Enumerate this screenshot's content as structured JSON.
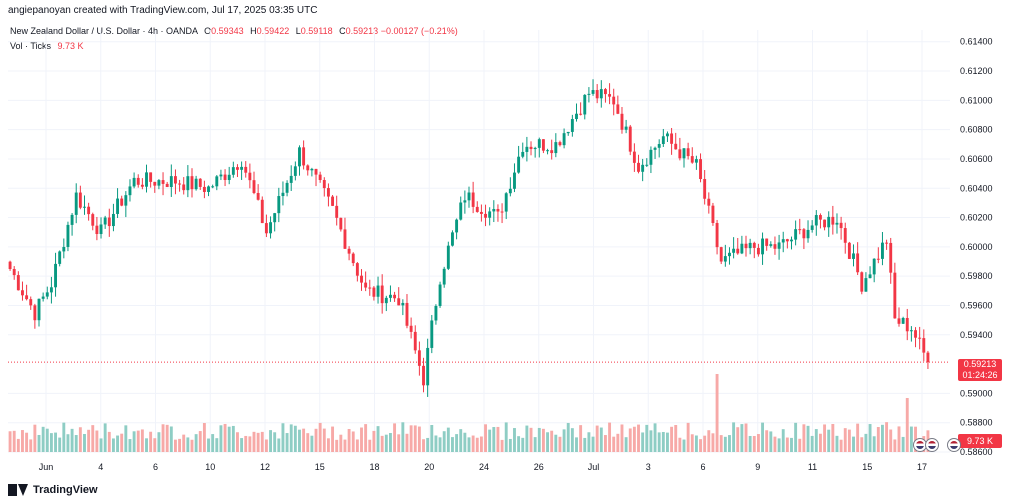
{
  "header": {
    "credit": "angiepanoyan created with TradingView.com, Jul 17, 2025 03:35 UTC"
  },
  "legend": {
    "symbol": "New Zealand Dollar / U.S. Dollar · 4h · OANDA",
    "open_label": "O",
    "open": "0.59343",
    "high_label": "H",
    "high": "0.59422",
    "low_label": "L",
    "low": "0.59118",
    "close_label": "C",
    "close": "0.59213",
    "change": "−0.00127 (−0.21%)",
    "volume_label": "Vol · Ticks",
    "volume_value": "9.73 K"
  },
  "price_tag": {
    "price": "0.59213",
    "countdown": "01:24:26"
  },
  "volume_tag": "9.73 K",
  "footer": {
    "brand": "TradingView"
  },
  "colors": {
    "up": "#089981",
    "down": "#f23645",
    "up_vol": "#8ecdc4",
    "down_vol": "#f7a9a7",
    "grid": "#f0f3fa"
  },
  "chart_data": {
    "type": "candlestick",
    "title": "New Zealand Dollar / U.S. Dollar · 4h · OANDA",
    "y_ticks": [
      "0.61400",
      "0.61200",
      "0.61000",
      "0.60800",
      "0.60600",
      "0.60400",
      "0.60200",
      "0.60000",
      "0.59800",
      "0.59600",
      "0.59400",
      "0.59000",
      "0.58800",
      "0.58600"
    ],
    "ylim": [
      0.586,
      0.6148
    ],
    "x_ticks": [
      "Jun",
      "4",
      "6",
      "10",
      "12",
      "15",
      "18",
      "20",
      "24",
      "26",
      "Jul",
      "3",
      "6",
      "9",
      "11",
      "15",
      "17"
    ],
    "last_price": 0.59213,
    "anchor_points": [
      {
        "i": 0,
        "close": 0.5985
      },
      {
        "i": 6,
        "close": 0.5955
      },
      {
        "i": 10,
        "close": 0.5975
      },
      {
        "i": 16,
        "close": 0.6035
      },
      {
        "i": 22,
        "close": 0.601
      },
      {
        "i": 30,
        "close": 0.6045
      },
      {
        "i": 40,
        "close": 0.6045
      },
      {
        "i": 48,
        "close": 0.604
      },
      {
        "i": 56,
        "close": 0.606
      },
      {
        "i": 62,
        "close": 0.601
      },
      {
        "i": 70,
        "close": 0.6065
      },
      {
        "i": 78,
        "close": 0.6025
      },
      {
        "i": 86,
        "close": 0.597
      },
      {
        "i": 94,
        "close": 0.5965
      },
      {
        "i": 100,
        "close": 0.591
      },
      {
        "i": 104,
        "close": 0.598
      },
      {
        "i": 110,
        "close": 0.6035
      },
      {
        "i": 118,
        "close": 0.602
      },
      {
        "i": 124,
        "close": 0.607
      },
      {
        "i": 132,
        "close": 0.607
      },
      {
        "i": 140,
        "close": 0.6105
      },
      {
        "i": 146,
        "close": 0.61
      },
      {
        "i": 152,
        "close": 0.6055
      },
      {
        "i": 158,
        "close": 0.6075
      },
      {
        "i": 166,
        "close": 0.6055
      },
      {
        "i": 172,
        "close": 0.599
      },
      {
        "i": 180,
        "close": 0.6
      },
      {
        "i": 186,
        "close": 0.6
      },
      {
        "i": 194,
        "close": 0.6015
      },
      {
        "i": 200,
        "close": 0.602
      },
      {
        "i": 206,
        "close": 0.5975
      },
      {
        "i": 212,
        "close": 0.6005
      },
      {
        "i": 214,
        "close": 0.595
      },
      {
        "i": 218,
        "close": 0.5945
      },
      {
        "i": 222,
        "close": 0.5921
      }
    ],
    "candle_count": 223,
    "volume_spikes": [
      {
        "i": 102,
        "v": 0.9
      },
      {
        "i": 166,
        "v": 0.55
      },
      {
        "i": 171,
        "v": 2.6
      },
      {
        "i": 217,
        "v": 1.8
      }
    ]
  }
}
